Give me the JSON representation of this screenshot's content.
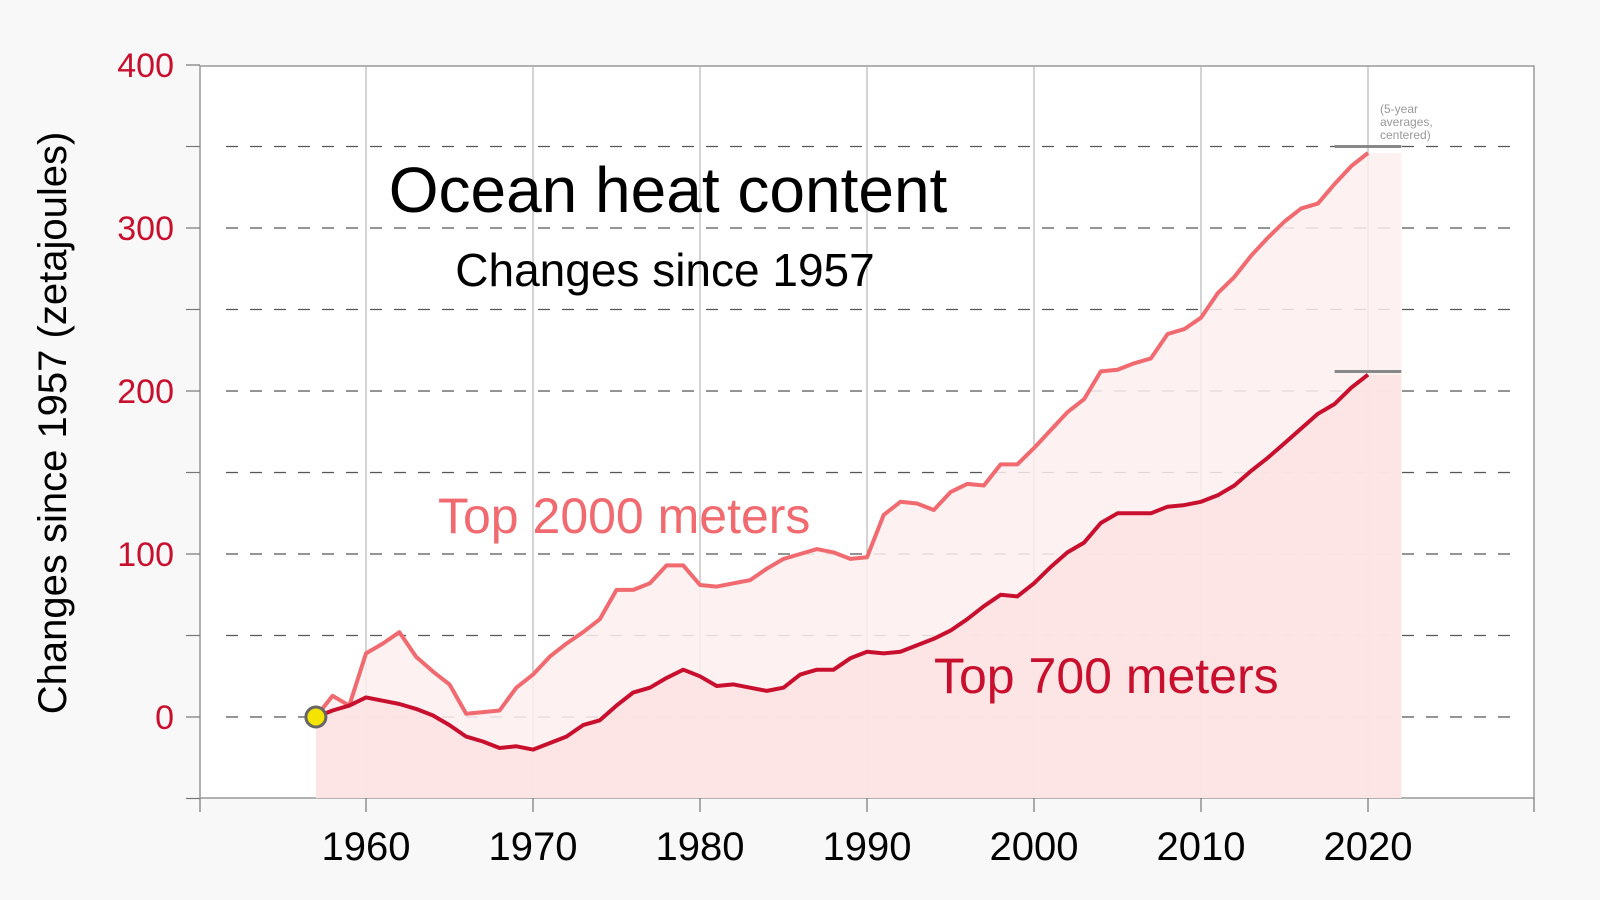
{
  "colors": {
    "page_background": "#f8f8f8",
    "plot_background": "#ffffff",
    "axis_tick_labels_y": "#c8102e",
    "top2000": "#f06a70",
    "top700": "#c8102e",
    "fill2000": "#fdeeee",
    "fill700": "#fde3e3",
    "start_marker": "#f5e400",
    "end_bar": "#888888"
  },
  "chart_data": {
    "type": "line",
    "title": "Ocean heat content",
    "subtitle": "Changes since 1957",
    "xlabel": "",
    "ylabel": "Changes since 1957 (zetajoules)",
    "xlim": [
      1950,
      2030
    ],
    "ylim": [
      -50,
      400
    ],
    "x_ticks": [
      1960,
      1970,
      1980,
      1990,
      2000,
      2010,
      2020
    ],
    "y_ticks": [
      0,
      100,
      200,
      300,
      400
    ],
    "y_tick_labels": [
      "0",
      "100",
      "200",
      "300",
      "400"
    ],
    "x_tick_labels": [
      "1960",
      "1970",
      "1980",
      "1990",
      "2000",
      "2010",
      "2020"
    ],
    "grid": "horizontal dashed every 50, vertical solid every 10 years",
    "note": "(5-year averages, centered)",
    "series": [
      {
        "name": "Top 2000 meters",
        "x": [
          1957,
          1958,
          1959,
          1960,
          1961,
          1962,
          1963,
          1964,
          1965,
          1966,
          1967,
          1968,
          1969,
          1970,
          1971,
          1972,
          1973,
          1974,
          1975,
          1976,
          1977,
          1978,
          1979,
          1980,
          1981,
          1982,
          1983,
          1984,
          1985,
          1986,
          1987,
          1988,
          1989,
          1990,
          1991,
          1992,
          1993,
          1994,
          1995,
          1996,
          1997,
          1998,
          1999,
          2000,
          2001,
          2002,
          2003,
          2004,
          2005,
          2006,
          2007,
          2008,
          2009,
          2010,
          2011,
          2012,
          2013,
          2014,
          2015,
          2016,
          2017,
          2018,
          2019,
          2020
        ],
        "values": [
          0,
          13,
          7,
          39,
          45,
          52,
          37,
          28,
          20,
          2,
          3,
          4,
          18,
          26,
          37,
          45,
          52,
          60,
          78,
          78,
          82,
          93,
          93,
          81,
          80,
          82,
          84,
          91,
          97,
          100,
          103,
          101,
          97,
          98,
          124,
          132,
          131,
          127,
          138,
          143,
          142,
          155,
          155,
          165,
          176,
          187,
          195,
          212,
          213,
          217,
          220,
          235,
          238,
          245,
          260,
          270,
          283,
          294,
          304,
          312,
          315,
          327,
          338,
          346
        ],
        "end_bar": 350
      },
      {
        "name": "Top 700 meters",
        "x": [
          1957,
          1958,
          1959,
          1960,
          1961,
          1962,
          1963,
          1964,
          1965,
          1966,
          1967,
          1968,
          1969,
          1970,
          1971,
          1972,
          1973,
          1974,
          1975,
          1976,
          1977,
          1978,
          1979,
          1980,
          1981,
          1982,
          1983,
          1984,
          1985,
          1986,
          1987,
          1988,
          1989,
          1990,
          1991,
          1992,
          1993,
          1994,
          1995,
          1996,
          1997,
          1998,
          1999,
          2000,
          2001,
          2002,
          2003,
          2004,
          2005,
          2006,
          2007,
          2008,
          2009,
          2010,
          2011,
          2012,
          2013,
          2014,
          2015,
          2016,
          2017,
          2018,
          2019,
          2020
        ],
        "values": [
          0,
          4,
          7,
          12,
          10,
          8,
          5,
          1,
          -5,
          -12,
          -15,
          -19,
          -18,
          -20,
          -16,
          -12,
          -5,
          -2,
          7,
          15,
          18,
          24,
          29,
          25,
          19,
          20,
          18,
          16,
          18,
          26,
          29,
          29,
          36,
          40,
          39,
          40,
          44,
          48,
          53,
          60,
          68,
          75,
          74,
          82,
          92,
          101,
          107,
          119,
          125,
          125,
          125,
          129,
          130,
          132,
          136,
          142,
          151,
          159,
          168,
          177,
          186,
          192,
          202,
          210
        ],
        "end_bar": 212
      }
    ]
  }
}
